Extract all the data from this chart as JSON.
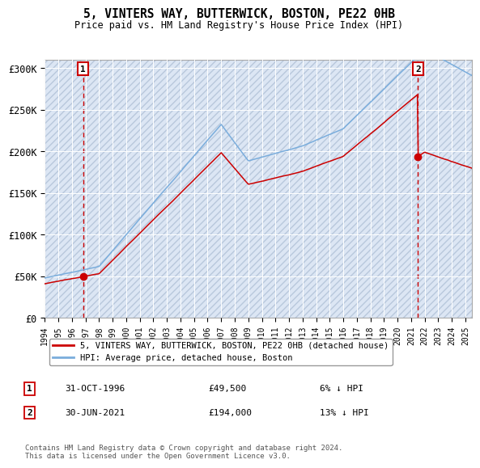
{
  "title": "5, VINTERS WAY, BUTTERWICK, BOSTON, PE22 0HB",
  "subtitle": "Price paid vs. HM Land Registry's House Price Index (HPI)",
  "property_label": "5, VINTERS WAY, BUTTERWICK, BOSTON, PE22 0HB (detached house)",
  "hpi_label": "HPI: Average price, detached house, Boston",
  "sale1_date": "31-OCT-1996",
  "sale1_price": 49500,
  "sale1_note": "6% ↓ HPI",
  "sale2_date": "30-JUN-2021",
  "sale2_price": 194000,
  "sale2_note": "13% ↓ HPI",
  "sale1_year": 1996.83,
  "sale2_year": 2021.5,
  "xmin": 1994,
  "xmax": 2025.5,
  "ymin": 0,
  "ymax": 310000,
  "property_color": "#cc0000",
  "hpi_color": "#7aaddc",
  "copyright": "Contains HM Land Registry data © Crown copyright and database right 2024.\nThis data is licensed under the Open Government Licence v3.0.",
  "yticks": [
    0,
    50000,
    100000,
    150000,
    200000,
    250000,
    300000
  ],
  "ytick_labels": [
    "£0",
    "£50K",
    "£100K",
    "£150K",
    "£200K",
    "£250K",
    "£300K"
  ],
  "xticks": [
    1994,
    1995,
    1996,
    1997,
    1998,
    1999,
    2000,
    2001,
    2002,
    2003,
    2004,
    2005,
    2006,
    2007,
    2008,
    2009,
    2010,
    2011,
    2012,
    2013,
    2014,
    2015,
    2016,
    2017,
    2018,
    2019,
    2020,
    2021,
    2022,
    2023,
    2024,
    2025
  ]
}
